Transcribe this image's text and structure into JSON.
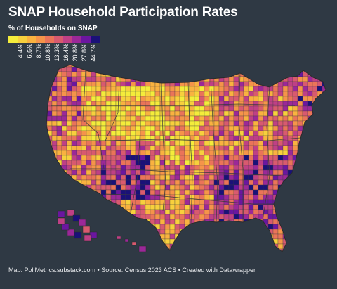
{
  "title": "SNAP Household Participation Rates",
  "legend": {
    "title": "% of Households on SNAP",
    "ticks": [
      "4.4%",
      "6.6%",
      "8.7%",
      "10.8%",
      "13.3%",
      "16.4%",
      "20.8%",
      "27.8%",
      "44.7%"
    ],
    "colors": [
      "#f4ec3b",
      "#f7d03d",
      "#f9b240",
      "#f5944a",
      "#ea7459",
      "#d85a6f",
      "#bf4085",
      "#9b2898",
      "#6b16a0",
      "#1a1178"
    ]
  },
  "palette": {
    "background": "#2f3944",
    "border": "#2b2b2b"
  },
  "footer": "Map: PoliMetrics.substack.com • Source: Census 2023 ACS • Created with Datawrapper"
}
